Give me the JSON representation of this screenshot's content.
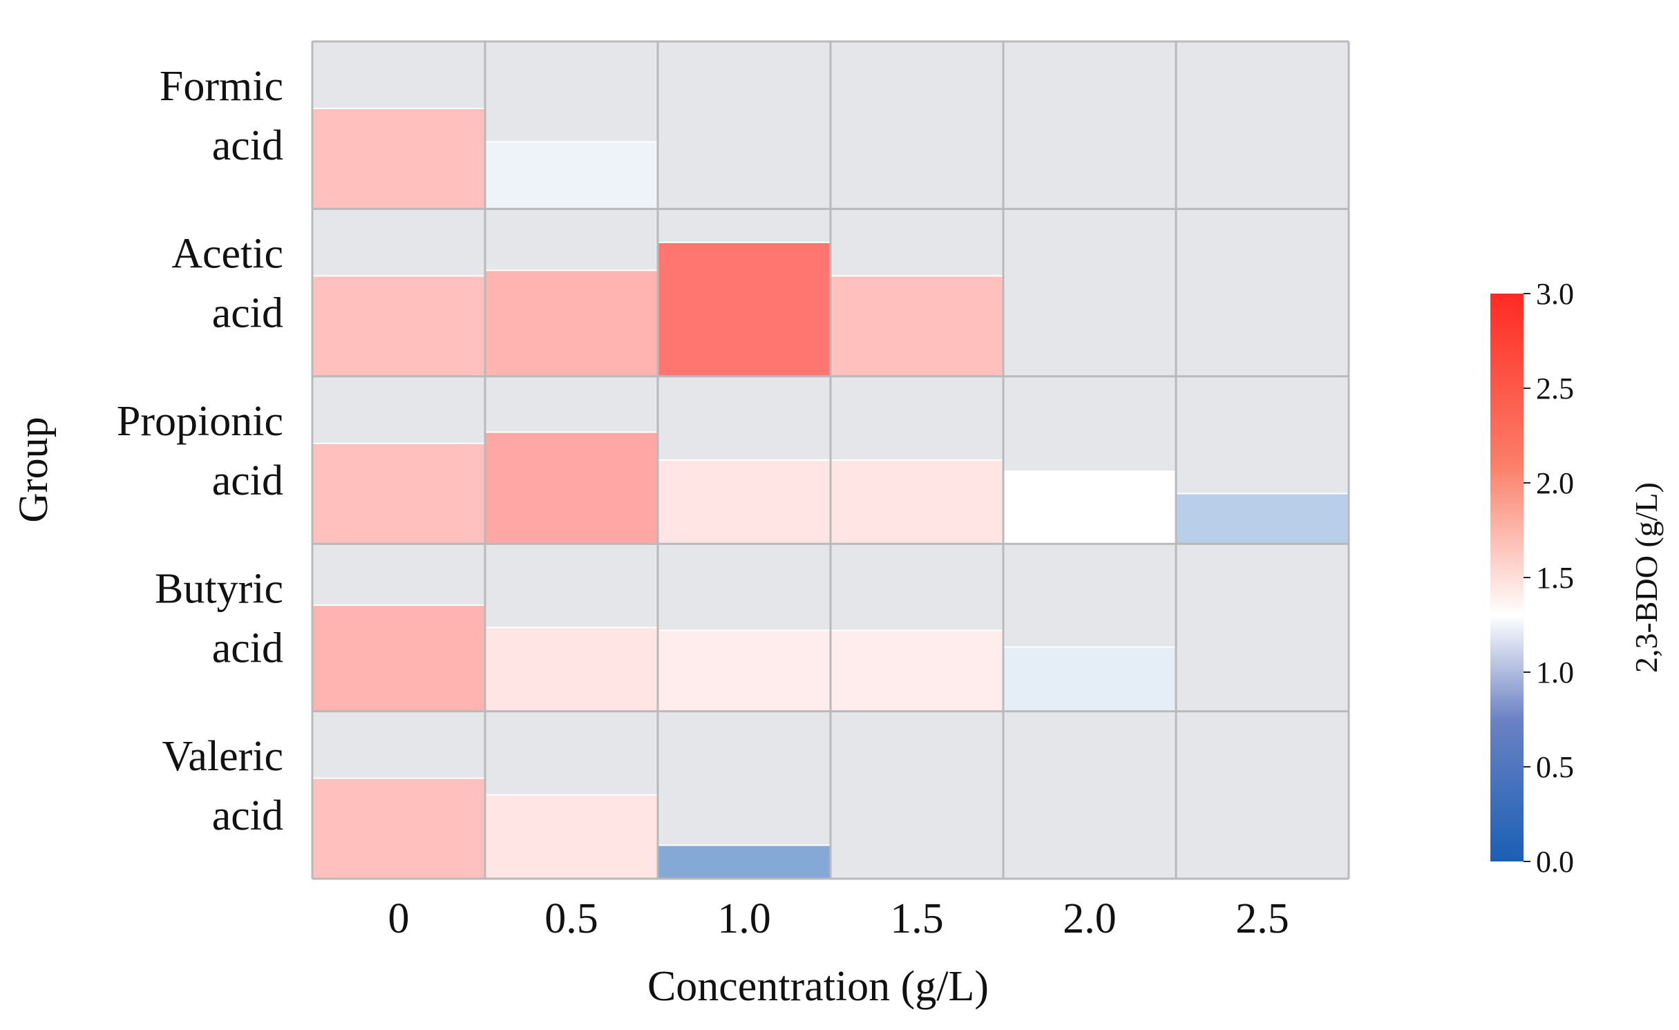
{
  "chart_data": {
    "type": "heatmap",
    "title": "",
    "xlabel": "Concentration (g/L)",
    "ylabel": "Group",
    "categories": [
      "0",
      "0.5",
      "1.0",
      "1.5",
      "2.0",
      "2.5"
    ],
    "groups": [
      {
        "label_lines": [
          "Formic",
          "acid"
        ],
        "values": [
          1.8,
          1.2,
          null,
          null,
          null,
          null
        ]
      },
      {
        "label_lines": [
          "Acetic",
          "acid"
        ],
        "values": [
          1.8,
          1.9,
          2.4,
          1.8,
          null,
          null
        ]
      },
      {
        "label_lines": [
          "Propionic",
          "acid"
        ],
        "values": [
          1.8,
          2.0,
          1.5,
          1.5,
          1.3,
          0.9
        ]
      },
      {
        "label_lines": [
          "Butyric",
          "acid"
        ],
        "values": [
          1.9,
          1.5,
          1.45,
          1.45,
          1.15,
          null
        ]
      },
      {
        "label_lines": [
          "Valeric",
          "acid"
        ],
        "values": [
          1.8,
          1.5,
          0.6,
          null,
          null,
          null
        ]
      }
    ],
    "value_max": 3.0,
    "colorbar": {
      "label": "2,3-BDO (g/L)",
      "min": 0.0,
      "max": 3.0,
      "center": 1.3,
      "ticks": [
        "0.0",
        "0.5",
        "1.0",
        "1.5",
        "2.0",
        "2.5",
        "3.0"
      ],
      "colors": {
        "low": "#1a5fb4",
        "mid": "#ffffff",
        "high": "#ff2a22"
      }
    },
    "colors": {
      "empty_cell": "#e4e6e9",
      "grid_line": "#b9b9b9",
      "bar_edge": "#ffffff"
    }
  }
}
